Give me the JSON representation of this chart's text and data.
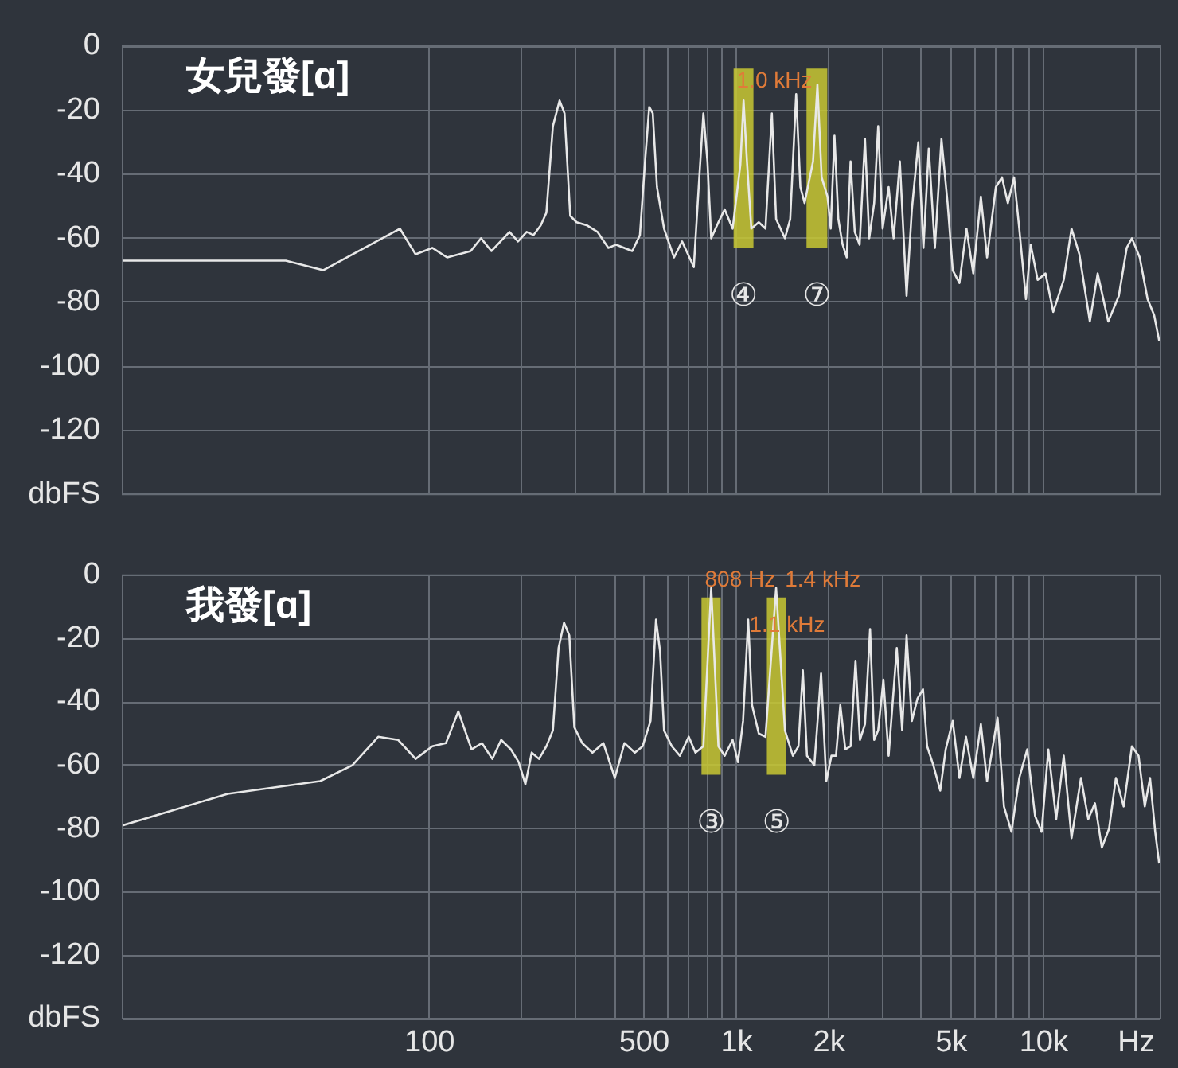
{
  "chart_data": [
    {
      "type": "line",
      "title": "女兒發[ɑ]",
      "log": "x",
      "xlim": [
        10,
        24000
      ],
      "xticks": [
        {
          "value": 100,
          "label": null
        },
        {
          "value": 200,
          "label": null
        },
        {
          "value": 300,
          "label": null
        },
        {
          "value": 400,
          "label": null
        },
        {
          "value": 500,
          "label": null
        },
        {
          "value": 600,
          "label": null
        },
        {
          "value": 700,
          "label": null
        },
        {
          "value": 800,
          "label": null
        },
        {
          "value": 900,
          "label": null
        },
        {
          "value": 1000,
          "label": null
        },
        {
          "value": 2000,
          "label": null
        },
        {
          "value": 3000,
          "label": null
        },
        {
          "value": 4000,
          "label": null
        },
        {
          "value": 5000,
          "label": null
        },
        {
          "value": 6000,
          "label": null
        },
        {
          "value": 7000,
          "label": null
        },
        {
          "value": 8000,
          "label": null
        },
        {
          "value": 9000,
          "label": null
        },
        {
          "value": 10000,
          "label": null
        },
        {
          "value": 20000,
          "label": null
        }
      ],
      "ylim": [
        -140,
        0
      ],
      "yticks": [
        0,
        -20,
        -40,
        -60,
        -80,
        -100,
        -120,
        {
          "value": -140,
          "label": "dbFS"
        }
      ],
      "grid": true,
      "tick_labels": "y",
      "x": [
        10,
        34,
        45,
        80,
        90,
        102,
        114,
        136,
        147,
        159,
        182,
        194,
        207,
        218,
        230,
        240,
        252,
        265,
        275,
        287,
        301,
        326,
        352,
        382,
        405,
        457,
        484,
        503,
        519,
        533,
        550,
        580,
        625,
        664,
        725,
        752,
        779,
        803,
        826,
        872,
        914,
        970,
        1028,
        1053,
        1080,
        1116,
        1180,
        1241,
        1302,
        1344,
        1436,
        1494,
        1562,
        1612,
        1664,
        1773,
        1832,
        1891,
        1976,
        2024,
        2082,
        2143,
        2213,
        2283,
        2349,
        2424,
        2514,
        2617,
        2702,
        2804,
        2889,
        2987,
        3125,
        3244,
        3399,
        3575,
        3720,
        3904,
        4057,
        4222,
        4420,
        4644,
        4862,
        5054,
        5314,
        5602,
        5895,
        6241,
        6536,
        6985,
        7311,
        7641,
        8006,
        8323,
        8751,
        9067,
        9554,
        10130,
        10737,
        11617,
        12318,
        13060,
        14130,
        14980,
        16220,
        17560,
        18630,
        19370,
        20540,
        21780,
        22880,
        23760
      ],
      "series": [
        {
          "color": "#e8e8e8",
          "values": [
            -67,
            -67,
            -70,
            -57,
            -65,
            -63,
            -66,
            -64,
            -60,
            -64,
            -58,
            -61,
            -58,
            -59,
            -56,
            -52,
            -25,
            -17,
            -21,
            -53,
            -55,
            -56,
            -58,
            -63,
            -62,
            -64,
            -59,
            -36,
            -19,
            -21,
            -44,
            -57,
            -66,
            -61,
            -69,
            -44,
            -21,
            -36,
            -60,
            -55,
            -51,
            -57,
            -37,
            -17,
            -36,
            -57,
            -55,
            -57,
            -21,
            -54,
            -60,
            -54,
            -15,
            -44,
            -49,
            -36,
            -12,
            -41,
            -47,
            -57,
            -28,
            -54,
            -62,
            -66,
            -36,
            -58,
            -62,
            -29,
            -60,
            -49,
            -25,
            -57,
            -44,
            -60,
            -36,
            -78,
            -51,
            -30,
            -63,
            -32,
            -63,
            -29,
            -49,
            -70,
            -74,
            -57,
            -71,
            -47,
            -66,
            -44,
            -41,
            -49,
            -41,
            -57,
            -79,
            -62,
            -73,
            -71,
            -83,
            -73,
            -57,
            -65,
            -86,
            -71,
            -86,
            -78,
            -63,
            -60,
            -66,
            -79,
            -84,
            -92
          ]
        }
      ],
      "bands": [
        {
          "axis": "x",
          "from": 977,
          "to": 1134,
          "label": "④",
          "color": "#c8c832"
        },
        {
          "axis": "x",
          "from": 1688,
          "to": 1973,
          "label": "⑦",
          "color": "#c8c832"
        }
      ],
      "annotations": [
        {
          "text": "1.0 kHz",
          "x": 1000,
          "y": -11
        }
      ]
    },
    {
      "type": "line",
      "title": "我發[ɑ]",
      "log": "x",
      "xlim": [
        10,
        24000
      ],
      "xticks": [
        100,
        {
          "value": 200,
          "label": null
        },
        {
          "value": 300,
          "label": null
        },
        {
          "value": 400,
          "label": null
        },
        500,
        {
          "value": 600,
          "label": null
        },
        {
          "value": 700,
          "label": null
        },
        {
          "value": 800,
          "label": null
        },
        {
          "value": 900,
          "label": null
        },
        {
          "value": 1000,
          "label": "1k"
        },
        {
          "value": 2000,
          "label": "2k"
        },
        {
          "value": 3000,
          "label": null
        },
        {
          "value": 4000,
          "label": null
        },
        {
          "value": 5000,
          "label": "5k"
        },
        {
          "value": 6000,
          "label": null
        },
        {
          "value": 7000,
          "label": null
        },
        {
          "value": 8000,
          "label": null
        },
        {
          "value": 9000,
          "label": null
        },
        {
          "value": 10000,
          "label": "10k"
        },
        {
          "value": 20000,
          "label": "Hz"
        }
      ],
      "ylim": [
        -140,
        0
      ],
      "yticks": [
        0,
        -20,
        -40,
        -60,
        -80,
        -100,
        -120,
        {
          "value": -140,
          "label": "dbFS"
        }
      ],
      "grid": true,
      "x": [
        10,
        22,
        44,
        56,
        68,
        79,
        90,
        102,
        113,
        124,
        137,
        148,
        160,
        171,
        184,
        195,
        205,
        215,
        227,
        240,
        252,
        263,
        274,
        285,
        296,
        314,
        339,
        368,
        401,
        431,
        466,
        494,
        524,
        546,
        563,
        580,
        615,
        653,
        698,
        734,
        779,
        826,
        872,
        914,
        970,
        1010,
        1049,
        1090,
        1122,
        1180,
        1241,
        1344,
        1436,
        1524,
        1589,
        1642,
        1694,
        1790,
        1883,
        1958,
        2035,
        2106,
        2175,
        2258,
        2350,
        2438,
        2520,
        2617,
        2719,
        2804,
        2889,
        3005,
        3125,
        3322,
        3459,
        3575,
        3720,
        3878,
        4043,
        4170,
        4370,
        4602,
        4794,
        5054,
        5314,
        5581,
        5895,
        6241,
        6536,
        7072,
        7420,
        7848,
        8323,
        8835,
        9370,
        9838,
        10350,
        10977,
        11617,
        12318,
        13220,
        13960,
        14680,
        15460,
        16320,
        17180,
        18210,
        19370,
        20360,
        21330,
        22190,
        23060,
        23760
      ],
      "series": [
        {
          "color": "#e8e8e8",
          "values": [
            -79,
            -69,
            -65,
            -60,
            -51,
            -52,
            -58,
            -54,
            -53,
            -43,
            -55,
            -53,
            -58,
            -52,
            -55,
            -59,
            -66,
            -56,
            -58,
            -54,
            -49,
            -23,
            -15,
            -19,
            -48,
            -53,
            -56,
            -53,
            -64,
            -53,
            -56,
            -54,
            -46,
            -14,
            -24,
            -49,
            -54,
            -57,
            -51,
            -56,
            -54,
            -4,
            -54,
            -57,
            -52,
            -59,
            -46,
            -14,
            -41,
            -50,
            -51,
            -4,
            -49,
            -57,
            -54,
            -30,
            -57,
            -60,
            -31,
            -65,
            -57,
            -57,
            -41,
            -55,
            -54,
            -27,
            -52,
            -47,
            -17,
            -52,
            -49,
            -33,
            -57,
            -23,
            -49,
            -19,
            -46,
            -39,
            -36,
            -54,
            -60,
            -68,
            -55,
            -46,
            -64,
            -51,
            -64,
            -47,
            -65,
            -45,
            -73,
            -81,
            -64,
            -55,
            -76,
            -81,
            -55,
            -77,
            -57,
            -83,
            -64,
            -77,
            -72,
            -86,
            -80,
            -64,
            -73,
            -54,
            -57,
            -73,
            -64,
            -81,
            -91
          ]
        }
      ],
      "bands": [
        {
          "axis": "x",
          "from": 768,
          "to": 887,
          "label": "③",
          "color": "#c8c832"
        },
        {
          "axis": "x",
          "from": 1254,
          "to": 1451,
          "label": "⑤",
          "color": "#c8c832"
        }
      ],
      "annotations": [
        "808 Hz",
        "1.4 kHz",
        {
          "text": "1.1 kHz",
          "x": 1100,
          "y": -16
        }
      ]
    }
  ]
}
